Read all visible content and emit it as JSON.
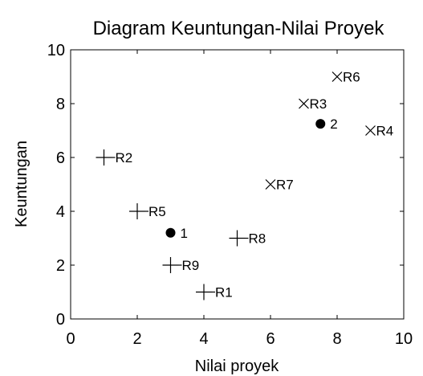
{
  "chart_data": {
    "type": "scatter",
    "title": "Diagram Keuntungan-Nilai Proyek",
    "xlabel": "Nilai proyek",
    "ylabel": "Keuntungan",
    "xlim": [
      0,
      10
    ],
    "ylim": [
      0,
      10
    ],
    "xticks": [
      0,
      2,
      4,
      6,
      8,
      10
    ],
    "yticks": [
      0,
      2,
      4,
      6,
      8,
      10
    ],
    "grid": false,
    "series": [
      {
        "marker": "plus",
        "points": [
          {
            "label": "R1",
            "x": 4,
            "y": 1
          },
          {
            "label": "R2",
            "x": 1,
            "y": 6
          },
          {
            "label": "R5",
            "x": 2,
            "y": 4
          },
          {
            "label": "R8",
            "x": 5,
            "y": 3
          },
          {
            "label": "R9",
            "x": 3,
            "y": 2
          }
        ]
      },
      {
        "marker": "cross",
        "points": [
          {
            "label": "R3",
            "x": 7,
            "y": 8
          },
          {
            "label": "R4",
            "x": 9,
            "y": 7
          },
          {
            "label": "R6",
            "x": 8,
            "y": 9
          },
          {
            "label": "R7",
            "x": 6,
            "y": 5
          }
        ]
      },
      {
        "marker": "dot",
        "points": [
          {
            "label": "1",
            "x": 3,
            "y": 3.2
          },
          {
            "label": "2",
            "x": 7.5,
            "y": 7.25
          }
        ]
      }
    ]
  }
}
